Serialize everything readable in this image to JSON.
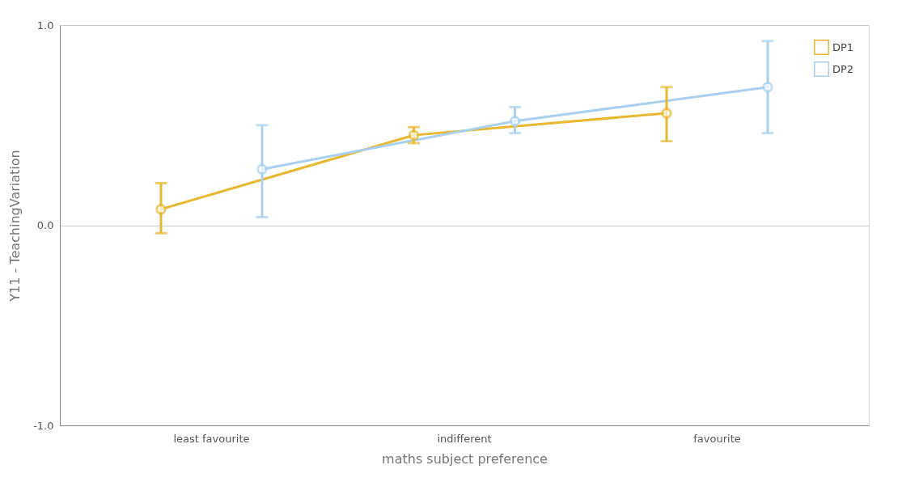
{
  "chart_data": {
    "type": "line",
    "xlabel": "maths subject preference",
    "ylabel": "Y11 - TeachingVariation",
    "categories": [
      "least favourite",
      "indifferent",
      "favourite"
    ],
    "series": [
      {
        "name": "DP1",
        "color": "#e8b830",
        "values": [
          0.08,
          0.45,
          0.56
        ],
        "errors": [
          [
            -0.04,
            0.21
          ],
          [
            0.41,
            0.49
          ],
          [
            0.42,
            0.69
          ]
        ]
      },
      {
        "name": "DP2",
        "color": "#a8d0f0",
        "values": [
          0.28,
          0.52,
          0.69
        ],
        "errors": [
          [
            0.04,
            0.5
          ],
          [
            0.46,
            0.59
          ],
          [
            0.46,
            0.92
          ]
        ]
      }
    ],
    "ylim": [
      -1.0,
      1.0
    ],
    "yticks": [
      {
        "value": -1,
        "label": "-1.0"
      },
      {
        "value": 0,
        "label": "0.0"
      },
      {
        "value": 1,
        "label": "1.0"
      }
    ],
    "grid": "y",
    "legend": "top right",
    "marker": "circle",
    "line_style": "solid"
  }
}
